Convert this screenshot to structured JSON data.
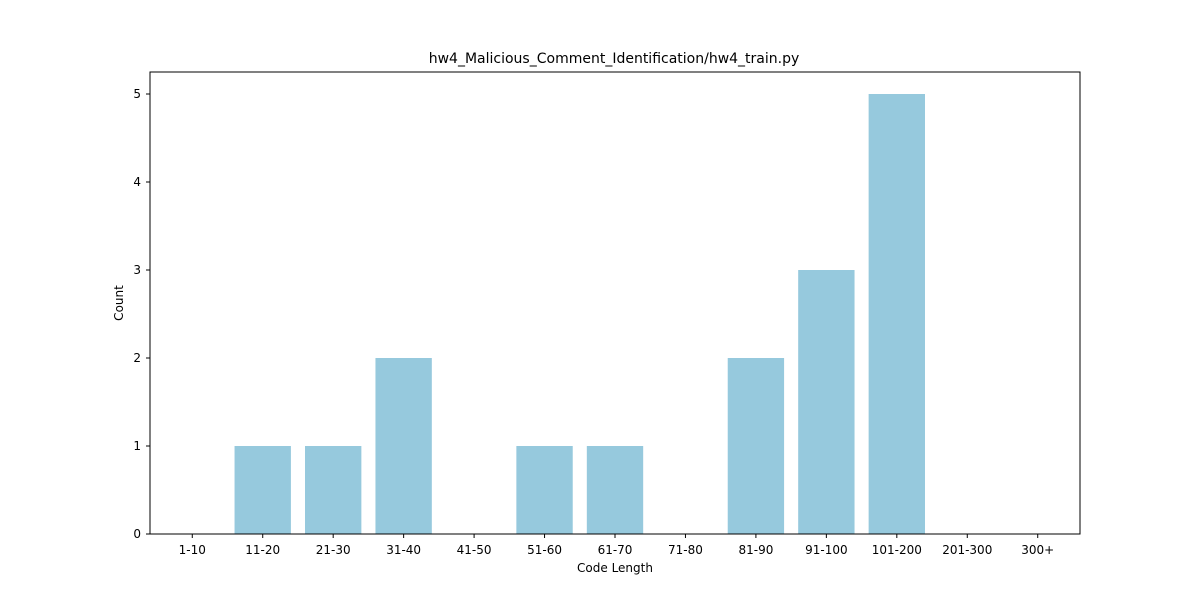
{
  "chart_data": {
    "type": "bar",
    "title": "hw4_Malicious_Comment_Identification/hw4_train.py",
    "xlabel": "Code Length",
    "ylabel": "Count",
    "categories": [
      "1-10",
      "11-20",
      "21-30",
      "31-40",
      "41-50",
      "51-60",
      "61-70",
      "71-80",
      "81-90",
      "91-100",
      "101-200",
      "201-300",
      "300+"
    ],
    "values": [
      0,
      1,
      1,
      2,
      0,
      1,
      1,
      0,
      2,
      3,
      5,
      0,
      0
    ],
    "ylim": [
      0,
      5.25
    ],
    "yticks": [
      0,
      1,
      2,
      3,
      4,
      5
    ],
    "grid": false,
    "colors": {
      "bar": "#96c9dd",
      "axis": "#000000"
    }
  }
}
